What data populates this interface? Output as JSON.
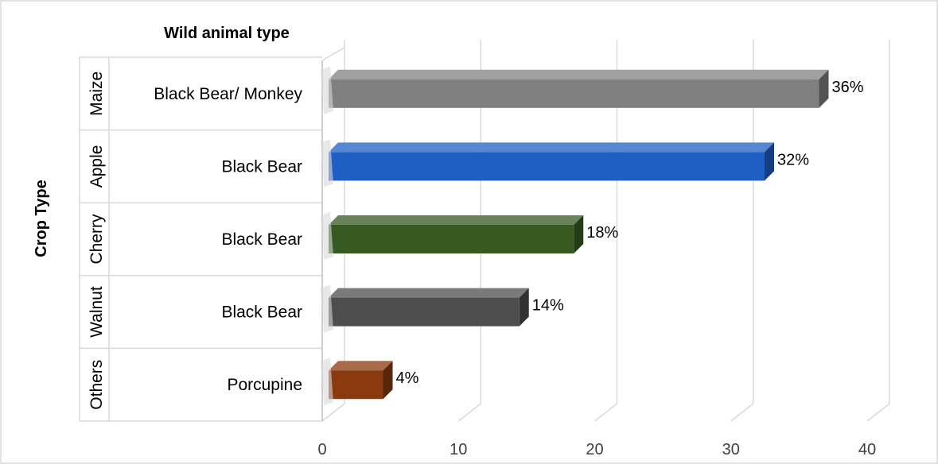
{
  "chart_data": {
    "type": "bar",
    "orientation": "horizontal",
    "x_axis_title": "Wild animal type",
    "y_axis_title": "Crop Type",
    "xlim": [
      0,
      40
    ],
    "x_ticks": [
      "0",
      "10",
      "20",
      "30",
      "40"
    ],
    "grid": true,
    "legend": "none",
    "groups": [
      "Maize",
      "Apple",
      "Cherry",
      "Walnut",
      "Others"
    ],
    "categories": [
      "Black Bear/ Monkey",
      "Black Bear",
      "Black Bear",
      "Black Bear",
      "Porcupine"
    ],
    "values": [
      36,
      32,
      18,
      14,
      4
    ],
    "data_labels": [
      "36%",
      "32%",
      "18%",
      "14%",
      "4%"
    ],
    "colors": [
      "#808080",
      "#1f5fc4",
      "#375a23",
      "#4d4d4d",
      "#8a3a0e"
    ]
  }
}
